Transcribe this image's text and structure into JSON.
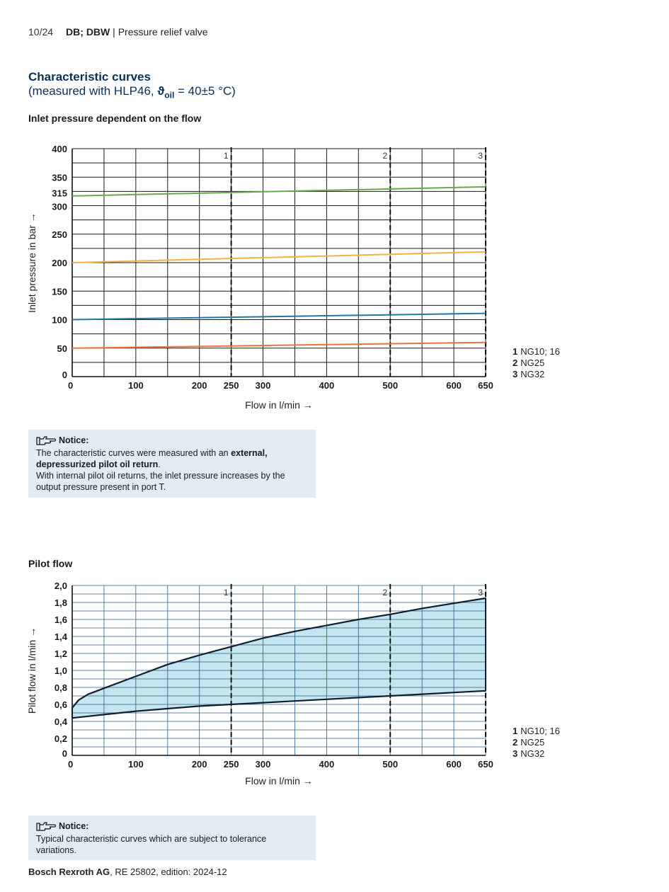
{
  "header": {
    "page": "10/24",
    "product": "DB; DBW",
    "separator": " | ",
    "subtitle": "Pressure relief valve"
  },
  "section": {
    "title": "Characteristic curves",
    "subtitle_prefix": "(measured with HLP46, ",
    "theta": "ϑ",
    "sub": "oil",
    "subtitle_suffix": " = 40±5 °C)"
  },
  "chart_data": [
    {
      "type": "line",
      "title": "Inlet pressure dependent on the flow",
      "xlabel": "Flow in l/min →",
      "ylabel": "Inlet pressure in bar →",
      "xlim": [
        0,
        650
      ],
      "ylim": [
        0,
        400
      ],
      "xticks": [
        0,
        100,
        200,
        250,
        300,
        400,
        500,
        600,
        650
      ],
      "yticks": [
        0,
        50,
        100,
        150,
        200,
        250,
        300,
        315,
        350,
        400
      ],
      "grid": true,
      "markers": [
        {
          "label": "1",
          "x": 250
        },
        {
          "label": "2",
          "x": 500
        },
        {
          "label": "3",
          "x": 650
        }
      ],
      "series": [
        {
          "color": "#6aa84f",
          "x": [
            0,
            650
          ],
          "y": [
            317,
            333
          ]
        },
        {
          "color": "#f6b042",
          "x": [
            0,
            650
          ],
          "y": [
            200,
            219
          ]
        },
        {
          "color": "#1f77a3",
          "x": [
            0,
            650
          ],
          "y": [
            100,
            111
          ]
        },
        {
          "color": "#e8753a",
          "x": [
            0,
            650
          ],
          "y": [
            50,
            60
          ]
        }
      ],
      "legend": [
        {
          "num": "1",
          "label": "NG10; 16"
        },
        {
          "num": "2",
          "label": "NG25"
        },
        {
          "num": "3",
          "label": "NG32"
        }
      ]
    },
    {
      "type": "area",
      "title": "Pilot flow",
      "xlabel": "Flow in l/min →",
      "ylabel": "Pilot flow in l/min →",
      "xlim": [
        0,
        650
      ],
      "ylim": [
        0,
        2.0
      ],
      "xticks": [
        0,
        100,
        200,
        250,
        300,
        400,
        500,
        600,
        650
      ],
      "yticks": [
        "0",
        "0,2",
        "0,4",
        "0,6",
        "0,8",
        "1,0",
        "1,2",
        "1,4",
        "1,6",
        "1,8",
        "2,0"
      ],
      "grid": true,
      "fill_color": "#c5e6ef",
      "markers": [
        {
          "label": "1",
          "x": 250
        },
        {
          "label": "2",
          "x": 500
        },
        {
          "label": "3",
          "x": 650
        }
      ],
      "series": [
        {
          "x": [
            0,
            10,
            25,
            50,
            100,
            150,
            200,
            250,
            300,
            350,
            400,
            450,
            500,
            550,
            600,
            650
          ],
          "y": [
            0.56,
            0.65,
            0.72,
            0.79,
            0.93,
            1.07,
            1.18,
            1.28,
            1.38,
            1.46,
            1.53,
            1.6,
            1.66,
            1.73,
            1.79,
            1.85
          ]
        },
        {
          "x": [
            0,
            50,
            100,
            150,
            200,
            250,
            300,
            350,
            400,
            450,
            500,
            550,
            600,
            650
          ],
          "y": [
            0.44,
            0.48,
            0.52,
            0.55,
            0.58,
            0.6,
            0.62,
            0.64,
            0.66,
            0.68,
            0.7,
            0.72,
            0.74,
            0.76
          ]
        }
      ],
      "legend": [
        {
          "num": "1",
          "label": "NG10; 16"
        },
        {
          "num": "2",
          "label": "NG25"
        },
        {
          "num": "3",
          "label": "NG32"
        }
      ]
    }
  ],
  "notice1": {
    "title": "Notice:",
    "line1_a": "The characteristic curves were measured with an ",
    "line1_b": "external, depressurized pilot oil return",
    "line1_c": ".",
    "line2": "With internal pilot oil returns, the inlet pressure increases by the output pressure present in port T."
  },
  "notice2": {
    "title": "Notice:",
    "text": "Typical characteristic curves which are subject to tolerance variations."
  },
  "footer": {
    "company": "Bosch Rexroth AG",
    "rest": ", RE 25802, edition: 2024-12"
  }
}
